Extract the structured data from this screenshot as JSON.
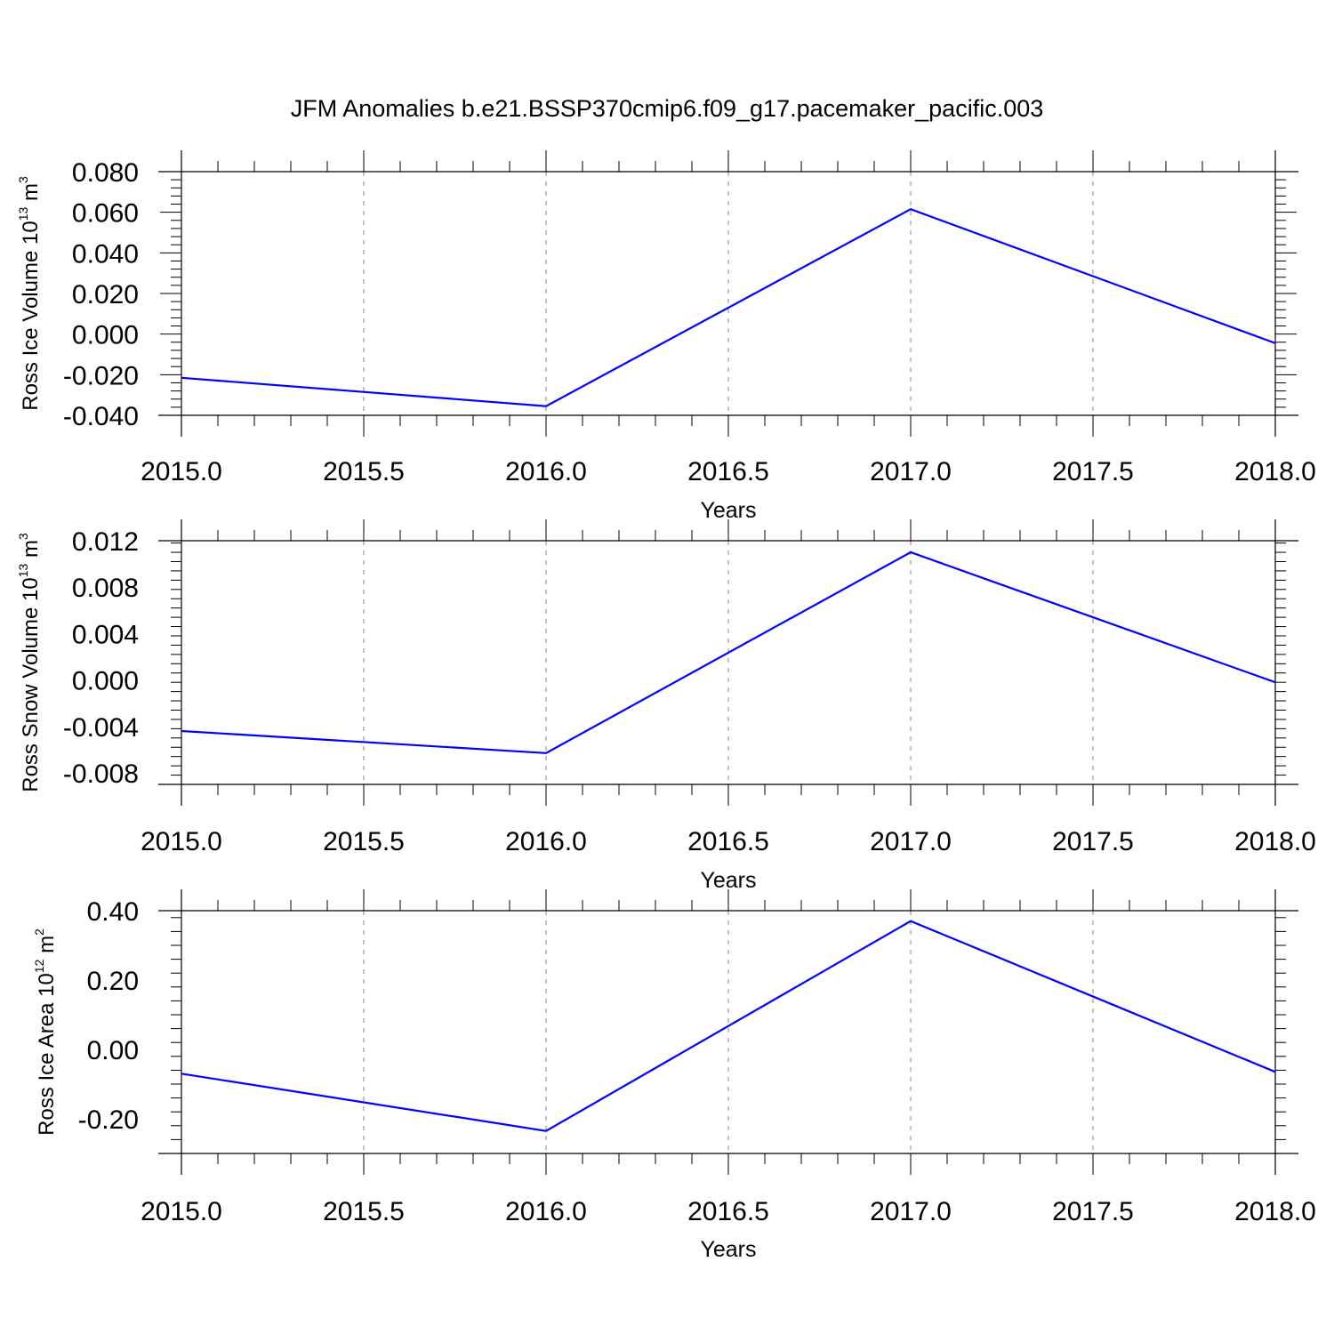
{
  "figure": {
    "title": "JFM Anomalies b.e21.BSSP370cmip6.f09_g17.pacemaker_pacific.003"
  },
  "chart_data": [
    {
      "type": "line",
      "panel": "ice-volume",
      "ylabel": {
        "text": "Ross Ice Volume 10",
        "exp": "13",
        "unit": " m",
        "unit_exp": "3"
      },
      "xlabel": "Years",
      "xlim": [
        2015.0,
        2018.0
      ],
      "ylim": [
        -0.04,
        0.08
      ],
      "xticks": [
        2015.0,
        2015.5,
        2016.0,
        2016.5,
        2017.0,
        2017.5,
        2018.0
      ],
      "xtick_labels": [
        "2015.0",
        "2015.5",
        "2016.0",
        "2016.5",
        "2017.0",
        "2017.5",
        "2018.0"
      ],
      "yticks": [
        -0.04,
        -0.02,
        0.0,
        0.02,
        0.04,
        0.06,
        0.08
      ],
      "ytick_labels": [
        "-0.040",
        "-0.020",
        "0.000",
        "0.020",
        "0.040",
        "0.060",
        "0.080"
      ],
      "grid": "vertical dashed at major x ticks",
      "color": "#0000ff",
      "x": [
        2015,
        2016,
        2017,
        2018
      ],
      "y": [
        -0.0215,
        -0.0355,
        0.0615,
        -0.0045
      ]
    },
    {
      "type": "line",
      "panel": "snow-volume",
      "ylabel": {
        "text": "Ross Snow Volume 10",
        "exp": "13",
        "unit": " m",
        "unit_exp": "3"
      },
      "xlabel": "Years",
      "xlim": [
        2015.0,
        2018.0
      ],
      "ylim": [
        -0.009,
        0.012
      ],
      "xticks": [
        2015.0,
        2015.5,
        2016.0,
        2016.5,
        2017.0,
        2017.5,
        2018.0
      ],
      "xtick_labels": [
        "2015.0",
        "2015.5",
        "2016.0",
        "2016.5",
        "2017.0",
        "2017.5",
        "2018.0"
      ],
      "yticks": [
        -0.008,
        -0.004,
        0.0,
        0.004,
        0.008,
        0.012
      ],
      "ytick_labels": [
        "-0.008",
        "-0.004",
        "0.000",
        "0.004",
        "0.008",
        "0.012"
      ],
      "grid": "vertical dashed at major x ticks",
      "color": "#0000ff",
      "x": [
        2015,
        2016,
        2017,
        2018
      ],
      "y": [
        -0.0044,
        -0.0063,
        0.011,
        -0.0002
      ]
    },
    {
      "type": "line",
      "panel": "ice-area",
      "ylabel": {
        "text": "Ross Ice Area 10",
        "exp": "12",
        "unit": " m",
        "unit_exp": "2"
      },
      "xlabel": "Years",
      "xlim": [
        2015.0,
        2018.0
      ],
      "ylim": [
        -0.3,
        0.4
      ],
      "xticks": [
        2015.0,
        2015.5,
        2016.0,
        2016.5,
        2017.0,
        2017.5,
        2018.0
      ],
      "xtick_labels": [
        "2015.0",
        "2015.5",
        "2016.0",
        "2016.5",
        "2017.0",
        "2017.5",
        "2018.0"
      ],
      "yticks": [
        -0.2,
        0.0,
        0.2,
        0.4
      ],
      "ytick_labels": [
        "-0.20",
        "0.00",
        "0.20",
        "0.40"
      ],
      "grid": "vertical dashed at major x ticks",
      "color": "#0000ff",
      "x": [
        2015,
        2016,
        2017,
        2018
      ],
      "y": [
        -0.07,
        -0.235,
        0.37,
        -0.065
      ]
    }
  ]
}
